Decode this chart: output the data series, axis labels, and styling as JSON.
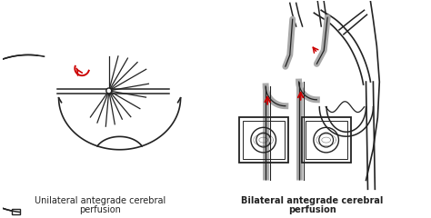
{
  "bg_color": "#ffffff",
  "line_color": "#222222",
  "red_color": "#cc0000",
  "gray_color": "#aaaaaa",
  "left_label_line1": "Unilateral antegrade cerebral",
  "left_label_line2": "perfusion",
  "right_label_line1": "Bilateral antegrade cerebral",
  "right_label_line2": "perfusion",
  "label_fontsize": 7.0,
  "label_fontweight_left": "normal",
  "label_fontweight_right": "bold"
}
